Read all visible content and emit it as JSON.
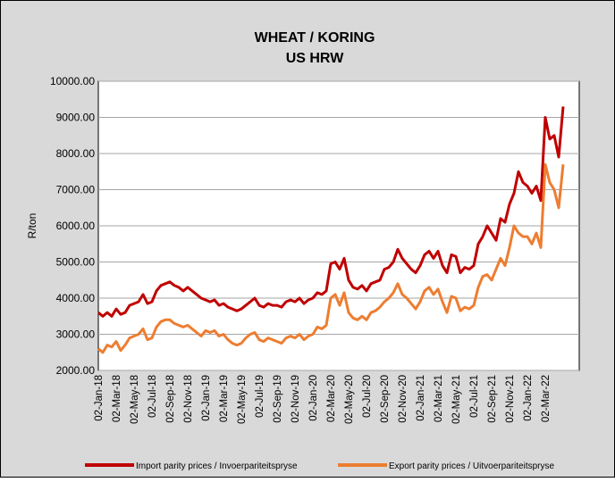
{
  "chart_data": {
    "type": "line",
    "title": "WHEAT / KORING",
    "subtitle": "US HRW",
    "y_label": "R/ton",
    "categories": [
      "02-Jan-18",
      null,
      null,
      null,
      "02-Mar-18",
      null,
      null,
      null,
      "02-May-18",
      null,
      null,
      null,
      "02-Jul-18",
      null,
      null,
      null,
      "02-Sep-18",
      null,
      null,
      null,
      "02-Nov-18",
      null,
      null,
      null,
      "02-Jan-19",
      null,
      null,
      null,
      "02-Mar-19",
      null,
      null,
      null,
      "02-May-19",
      null,
      null,
      null,
      "02-Jul-19",
      null,
      null,
      null,
      "02-Sep-19",
      null,
      null,
      null,
      "02-Nov-19",
      null,
      null,
      null,
      "02-Jan-20",
      null,
      null,
      null,
      "02-Mar-20",
      null,
      null,
      null,
      "02-May-20",
      null,
      null,
      null,
      "02-Jul-20",
      null,
      null,
      null,
      "02-Sep-20",
      null,
      null,
      null,
      "02-Nov-20",
      null,
      null,
      null,
      "02-Jan-21",
      null,
      null,
      null,
      "02-Mar-21",
      null,
      null,
      null,
      "02-May-21",
      null,
      null,
      null,
      "02-Jul-21",
      null,
      null,
      null,
      "02-Sep-21",
      null,
      null,
      null,
      "02-Nov-21",
      null,
      null,
      null,
      "02-Jan-22",
      null,
      null,
      null,
      "02-Mar-22",
      null,
      null,
      null,
      null
    ],
    "series": [
      {
        "name": "Import parity prices / Invoerpariteitspryse",
        "color": "#c00000",
        "values": [
          3600,
          3500,
          3600,
          3500,
          3700,
          3550,
          3600,
          3800,
          3850,
          3900,
          4100,
          3850,
          3900,
          4200,
          4350,
          4400,
          4450,
          4350,
          4300,
          4200,
          4300,
          4200,
          4100,
          4000,
          3950,
          3900,
          3950,
          3800,
          3850,
          3750,
          3700,
          3650,
          3700,
          3800,
          3900,
          4000,
          3800,
          3750,
          3850,
          3800,
          3800,
          3750,
          3900,
          3950,
          3900,
          4000,
          3850,
          3950,
          4000,
          4150,
          4100,
          4200,
          4950,
          5000,
          4800,
          5100,
          4500,
          4300,
          4250,
          4350,
          4200,
          4400,
          4450,
          4500,
          4800,
          4850,
          5000,
          5350,
          5100,
          4950,
          4800,
          4700,
          4900,
          5200,
          5300,
          5100,
          5300,
          4900,
          4700,
          5200,
          5150,
          4700,
          4850,
          4800,
          4900,
          5500,
          5700,
          6000,
          5800,
          5600,
          6200,
          6100,
          6600,
          6900,
          7500,
          7200,
          7100,
          6900,
          7100,
          6700,
          9000,
          8400,
          8500,
          7900,
          9300
        ]
      },
      {
        "name": "Export parity prices / Uitvoerpariteitspryse",
        "color": "#ed7d31",
        "values": [
          2600,
          2500,
          2700,
          2650,
          2800,
          2550,
          2700,
          2900,
          2950,
          3000,
          3150,
          2850,
          2900,
          3200,
          3350,
          3400,
          3400,
          3300,
          3250,
          3200,
          3250,
          3150,
          3050,
          2950,
          3100,
          3050,
          3100,
          2950,
          3000,
          2850,
          2750,
          2700,
          2750,
          2900,
          3000,
          3050,
          2850,
          2800,
          2900,
          2850,
          2800,
          2750,
          2900,
          2950,
          2900,
          3000,
          2850,
          2950,
          3000,
          3200,
          3150,
          3250,
          4000,
          4100,
          3800,
          4150,
          3600,
          3450,
          3400,
          3500,
          3400,
          3600,
          3650,
          3750,
          3900,
          4000,
          4150,
          4400,
          4100,
          4000,
          3850,
          3700,
          3900,
          4200,
          4300,
          4100,
          4250,
          3900,
          3600,
          4050,
          4000,
          3650,
          3750,
          3700,
          3800,
          4300,
          4600,
          4650,
          4500,
          4800,
          5100,
          4900,
          5400,
          6000,
          5800,
          5700,
          5700,
          5500,
          5800,
          5400,
          7700,
          7200,
          7000,
          6500,
          7700
        ]
      }
    ],
    "ylim": [
      2000,
      10000
    ],
    "yticks": [
      {
        "value": 2000,
        "label": "2000.00"
      },
      {
        "value": 3000,
        "label": "3000.00"
      },
      {
        "value": 4000,
        "label": "4000.00"
      },
      {
        "value": 5000,
        "label": "5000.00"
      },
      {
        "value": 6000,
        "label": "6000.00"
      },
      {
        "value": 7000,
        "label": "7000.00"
      },
      {
        "value": 8000,
        "label": "8000.00"
      },
      {
        "value": 9000,
        "label": "9000.00"
      },
      {
        "value": 10000,
        "label": "10000.00"
      }
    ],
    "grid": true
  }
}
